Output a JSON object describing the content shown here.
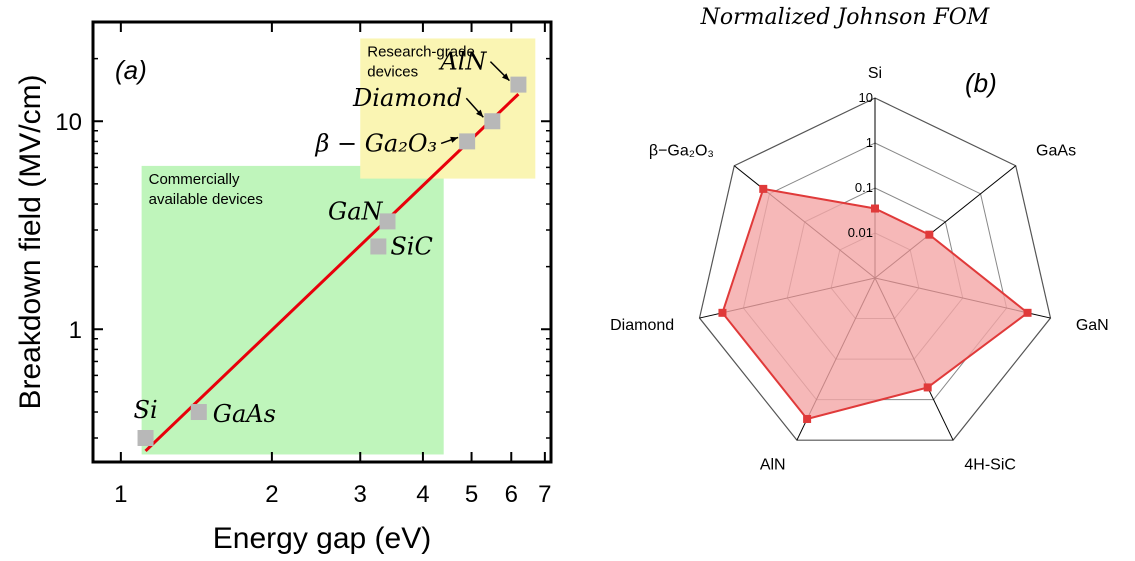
{
  "chart_data": [
    {
      "type": "scatter",
      "panel_label": "(a)",
      "xlabel": "Energy gap (eV)",
      "ylabel": "Breakdown field (MV/cm)",
      "x_scale": "log",
      "y_scale": "log",
      "xlim": [
        0.88,
        7.2
      ],
      "ylim": [
        0.23,
        30
      ],
      "x_ticks": [
        1,
        2,
        3,
        4,
        5,
        6,
        7
      ],
      "x_tick_labels": [
        "1",
        "2",
        "3",
        "4",
        "5",
        "6",
        "7"
      ],
      "y_ticks": [
        1,
        10
      ],
      "y_tick_labels": [
        "1",
        "10"
      ],
      "points": [
        {
          "label": "Si",
          "x": 1.12,
          "y": 0.3
        },
        {
          "label": "GaAs",
          "x": 1.43,
          "y": 0.4
        },
        {
          "label": "SiC",
          "x": 3.26,
          "y": 2.5
        },
        {
          "label": "GaN",
          "x": 3.4,
          "y": 3.3
        },
        {
          "label": "β − Ga₂O₃",
          "x": 4.9,
          "y": 8
        },
        {
          "label": "Diamond",
          "x": 5.5,
          "y": 10
        },
        {
          "label": "AlN",
          "x": 6.2,
          "y": 15
        }
      ],
      "fit_line": {
        "x": [
          1.12,
          6.2
        ],
        "y": [
          0.26,
          13.5
        ],
        "color": "#e8000b"
      },
      "regions": [
        {
          "label": "Commercially available devices",
          "x": [
            1.1,
            4.4
          ],
          "y": [
            0.25,
            6.1
          ],
          "color": "#bff5bb"
        },
        {
          "label": "Research-grade devices",
          "x": [
            3.0,
            6.7
          ],
          "y": [
            5.3,
            25
          ],
          "color": "#faf5b3"
        }
      ],
      "marker_color": "#b8b8b8"
    },
    {
      "type": "radar",
      "panel_label": "(b)",
      "title": "Normalized Johnson FOM",
      "scale": "log",
      "range": [
        0.001,
        10
      ],
      "ticks": [
        0.01,
        0.1,
        1,
        10
      ],
      "tick_labels": [
        "0.01",
        "0.1",
        "1",
        "10"
      ],
      "axes": [
        "Si",
        "GaAs",
        "GaN",
        "4H-SiC",
        "AlN",
        "Diamond",
        "β−Ga₂O₃"
      ],
      "values": [
        0.035,
        0.035,
        3.0,
        0.5,
        3.0,
        3.0,
        1.5
      ],
      "fill_color": "#f4a6a6",
      "line_color": "#e03a3a"
    }
  ]
}
